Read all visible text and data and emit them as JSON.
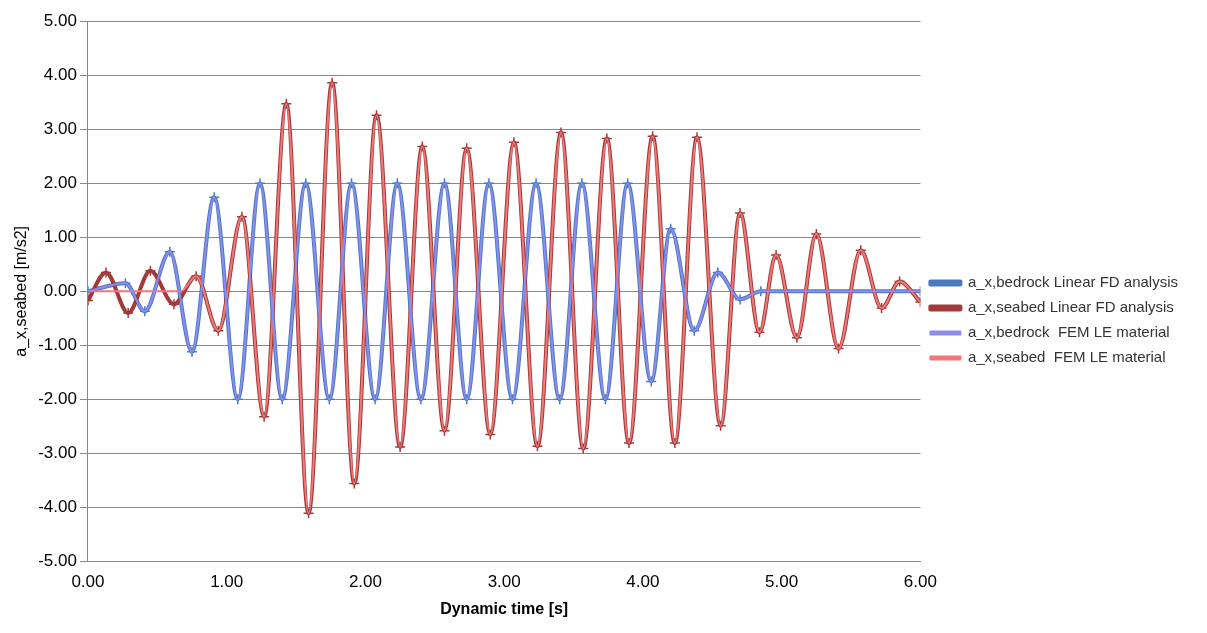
{
  "chart_data": {
    "type": "line",
    "xlabel": "Dynamic time [s]",
    "ylabel": "a_x,seabed [m/s2]",
    "xlim": [
      0,
      6
    ],
    "xticks": [
      {
        "value": 0,
        "label": "0.00"
      },
      {
        "value": 1,
        "label": "1.00"
      },
      {
        "value": 2,
        "label": "2.00"
      },
      {
        "value": 3,
        "label": "3.00"
      },
      {
        "value": 4,
        "label": "4.00"
      },
      {
        "value": 5,
        "label": "5.00"
      },
      {
        "value": 6,
        "label": "6.00"
      }
    ],
    "ylim": [
      -5,
      5
    ],
    "yticks": [
      {
        "value": -5,
        "label": "-5.00"
      },
      {
        "value": -4,
        "label": "-4.00"
      },
      {
        "value": -3,
        "label": "-3.00"
      },
      {
        "value": -2,
        "label": "-2.00"
      },
      {
        "value": -1,
        "label": "-1.00"
      },
      {
        "value": 0,
        "label": "0.00"
      },
      {
        "value": 1,
        "label": "1.00"
      },
      {
        "value": 2,
        "label": "2.00"
      },
      {
        "value": 3,
        "label": "3.00"
      },
      {
        "value": 4,
        "label": "4.00"
      },
      {
        "value": 5,
        "label": "5.00"
      }
    ],
    "grid": "y",
    "legend": "right",
    "line_style": "solid",
    "series": [
      {
        "name": "a_x,bedrock Linear FD analysis",
        "color": "#4a7bbf",
        "marker": "cross",
        "x": [
          0,
          0.27,
          0.41,
          0.59,
          0.75,
          0.91,
          1.08,
          1.24,
          1.4,
          1.57,
          1.74,
          1.9,
          2.07,
          2.23,
          2.4,
          2.57,
          2.73,
          2.89,
          3.06,
          3.23,
          3.4,
          3.56,
          3.73,
          3.89,
          4.06,
          4.2,
          4.37,
          4.54,
          4.7,
          4.85,
          6.0
        ],
        "values": [
          0,
          0.15,
          -0.37,
          0.73,
          -1.12,
          1.74,
          -2.0,
          2.0,
          -2.0,
          2.0,
          -2.0,
          2.0,
          -2.0,
          2.0,
          -2.0,
          2.0,
          -2.0,
          2.0,
          -2.0,
          2.0,
          -2.0,
          2.0,
          -2.0,
          2.0,
          -1.67,
          1.16,
          -0.73,
          0.35,
          -0.15,
          0,
          0
        ]
      },
      {
        "name": "a_x,seabed Linear FD analysis",
        "color": "#a33a3a",
        "marker": "cross",
        "x": [
          0,
          0.13,
          0.29,
          0.45,
          0.62,
          0.78,
          0.94,
          1.11,
          1.27,
          1.43,
          1.59,
          1.76,
          1.92,
          2.08,
          2.25,
          2.41,
          2.57,
          2.73,
          2.9,
          3.07,
          3.24,
          3.41,
          3.57,
          3.74,
          3.9,
          4.07,
          4.23,
          4.39,
          4.56,
          4.7,
          4.84,
          4.96,
          5.11,
          5.25,
          5.41,
          5.57,
          5.72,
          5.85,
          6.0
        ],
        "values": [
          -0.17,
          0.35,
          -0.4,
          0.38,
          -0.24,
          0.28,
          -0.73,
          1.38,
          -2.32,
          3.47,
          -4.11,
          3.86,
          -3.56,
          3.26,
          -2.88,
          2.68,
          -2.58,
          2.65,
          -2.65,
          2.76,
          -2.87,
          2.94,
          -2.91,
          2.83,
          -2.81,
          2.87,
          -2.81,
          2.85,
          -2.49,
          1.45,
          -0.76,
          0.67,
          -0.86,
          1.06,
          -1.06,
          0.76,
          -0.31,
          0.18,
          -0.2
        ]
      },
      {
        "name": "a_x,bedrock  FEM LE material",
        "color": "#8c8cf0",
        "marker": "none",
        "x": [
          0,
          0.27,
          0.41,
          0.59,
          0.75,
          0.91,
          1.08,
          1.24,
          1.4,
          1.57,
          1.74,
          1.9,
          2.07,
          2.23,
          2.4,
          2.57,
          2.73,
          2.89,
          3.06,
          3.23,
          3.4,
          3.56,
          3.73,
          3.89,
          4.06,
          4.2,
          4.37,
          4.54,
          4.7,
          4.85,
          6.0
        ],
        "values": [
          0,
          0.15,
          -0.37,
          0.73,
          -1.12,
          1.74,
          -2.0,
          2.0,
          -2.0,
          2.0,
          -2.0,
          2.0,
          -2.0,
          2.0,
          -2.0,
          2.0,
          -2.0,
          2.0,
          -2.0,
          2.0,
          -2.0,
          2.0,
          -2.0,
          2.0,
          -1.67,
          1.16,
          -0.73,
          0.35,
          -0.15,
          0,
          0
        ]
      },
      {
        "name": "a_x,seabed  FEM LE material",
        "color": "#f07878",
        "marker": "none",
        "x": [
          0,
          0.67,
          0.78,
          0.94,
          1.11,
          1.27,
          1.43,
          1.59,
          1.76,
          1.92,
          2.08,
          2.25,
          2.41,
          2.57,
          2.73,
          2.9,
          3.07,
          3.24,
          3.41,
          3.57,
          3.74,
          3.9,
          4.07,
          4.23,
          4.39,
          4.56,
          4.7,
          4.84,
          4.96,
          5.11,
          5.25,
          5.41,
          5.57,
          5.72,
          5.85,
          6.0
        ],
        "values": [
          0,
          0,
          0.28,
          -0.73,
          1.38,
          -2.32,
          3.47,
          -4.11,
          3.86,
          -3.56,
          3.26,
          -2.88,
          2.68,
          -2.58,
          2.65,
          -2.65,
          2.76,
          -2.87,
          2.94,
          -2.91,
          2.83,
          -2.81,
          2.87,
          -2.81,
          2.85,
          -2.49,
          1.45,
          -0.76,
          0.67,
          -0.86,
          1.06,
          -1.06,
          0.76,
          -0.31,
          0.18,
          -0.2
        ]
      }
    ]
  }
}
